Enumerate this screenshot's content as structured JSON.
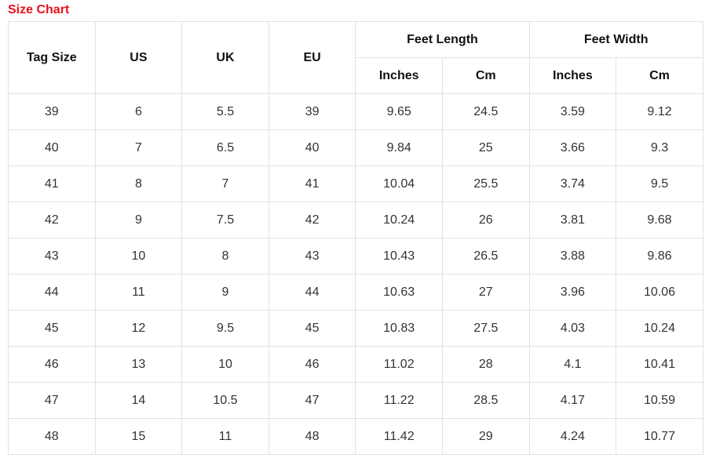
{
  "title": "Size Chart",
  "colors": {
    "title": "#e8101a",
    "border": "#e2e2e2"
  },
  "headers": {
    "tag_size": "Tag Size",
    "us": "US",
    "uk": "UK",
    "eu": "EU",
    "feet_length": "Feet Length",
    "feet_width": "Feet Width",
    "sub": [
      "Inches",
      "Cm",
      "Inches",
      "Cm"
    ]
  },
  "rows": [
    [
      "39",
      "6",
      "5.5",
      "39",
      "9.65",
      "24.5",
      "3.59",
      "9.12"
    ],
    [
      "40",
      "7",
      "6.5",
      "40",
      "9.84",
      "25",
      "3.66",
      "9.3"
    ],
    [
      "41",
      "8",
      "7",
      "41",
      "10.04",
      "25.5",
      "3.74",
      "9.5"
    ],
    [
      "42",
      "9",
      "7.5",
      "42",
      "10.24",
      "26",
      "3.81",
      "9.68"
    ],
    [
      "43",
      "10",
      "8",
      "43",
      "10.43",
      "26.5",
      "3.88",
      "9.86"
    ],
    [
      "44",
      "11",
      "9",
      "44",
      "10.63",
      "27",
      "3.96",
      "10.06"
    ],
    [
      "45",
      "12",
      "9.5",
      "45",
      "10.83",
      "27.5",
      "4.03",
      "10.24"
    ],
    [
      "46",
      "13",
      "10",
      "46",
      "11.02",
      "28",
      "4.1",
      "10.41"
    ],
    [
      "47",
      "14",
      "10.5",
      "47",
      "11.22",
      "28.5",
      "4.17",
      "10.59"
    ],
    [
      "48",
      "15",
      "11",
      "48",
      "11.42",
      "29",
      "4.24",
      "10.77"
    ]
  ]
}
